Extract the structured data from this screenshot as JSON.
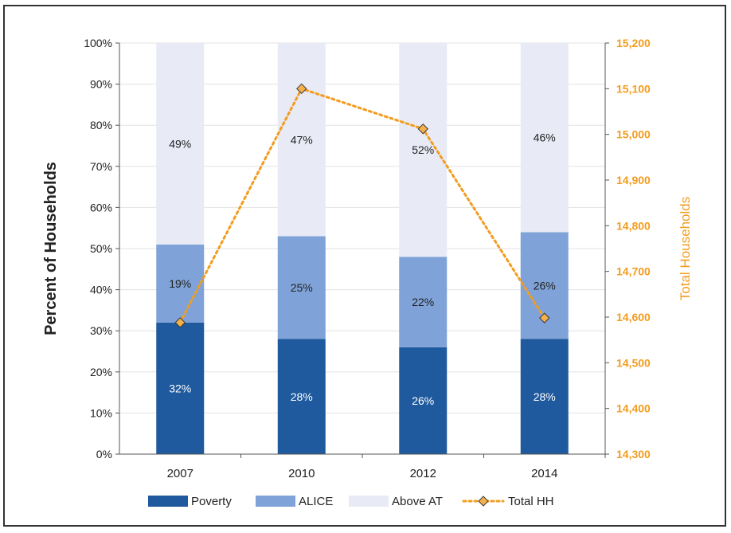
{
  "chart_data": {
    "type": "bar",
    "stacked": true,
    "categories": [
      "2007",
      "2010",
      "2012",
      "2014"
    ],
    "series": [
      {
        "name": "Poverty",
        "values": [
          32,
          28,
          26,
          28
        ],
        "labels": [
          "32%",
          "28%",
          "26%",
          "28%"
        ],
        "color": "#1f5a9e",
        "label_color": "#ffffff"
      },
      {
        "name": "ALICE",
        "values": [
          19,
          25,
          22,
          26
        ],
        "labels": [
          "19%",
          "25%",
          "22%",
          "26%"
        ],
        "color": "#7fa3d8",
        "label_color": "#222222"
      },
      {
        "name": "Above AT",
        "values": [
          49,
          47,
          52,
          46
        ],
        "labels": [
          "49%",
          "47%",
          "52%",
          "46%"
        ],
        "color": "#e8ebf6",
        "label_color": "#222222"
      }
    ],
    "line_series": {
      "name": "Total HH",
      "values": [
        14588,
        15100,
        15012,
        14598
      ],
      "color": "#f39c1e",
      "marker_color": "#f5b04a",
      "axis": "right"
    },
    "ylabel": "Percent of Households",
    "y2label": "Total Households",
    "ylim": [
      0,
      100
    ],
    "y2lim": [
      14300,
      15200
    ],
    "yticks": [
      "0%",
      "10%",
      "20%",
      "30%",
      "40%",
      "50%",
      "60%",
      "70%",
      "80%",
      "90%",
      "100%"
    ],
    "y2ticks": [
      "14,300",
      "14,400",
      "14,500",
      "14,600",
      "14,700",
      "14,800",
      "14,900",
      "15,000",
      "15,100",
      "15,200"
    ],
    "legend": {
      "position": "bottom",
      "entries": [
        "Poverty",
        "ALICE",
        "Above AT",
        "Total HH"
      ]
    },
    "grid": true
  }
}
